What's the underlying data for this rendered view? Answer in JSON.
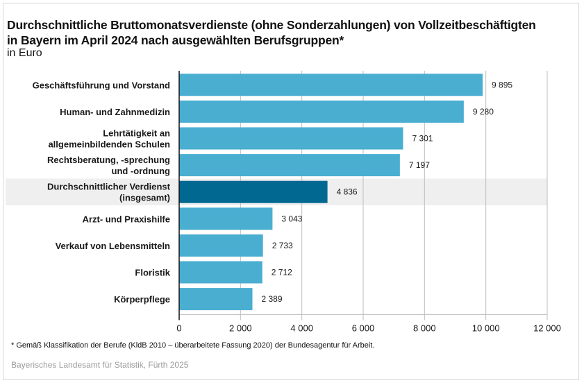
{
  "chart_data": {
    "type": "bar",
    "orientation": "horizontal",
    "title": "Durchschnittliche Bruttomonatsverdienste (ohne Sonderzahlungen) von Vollzeitbeschäftigten in Bayern im April 2024 nach ausgewählten Berufsgruppen*",
    "title_lines": [
      "Durchschnittliche Bruttomonatsverdienste (ohne Sonderzahlungen) von Vollzeitbeschäftigten",
      "in Bayern im April 2024 nach ausgewählten Berufsgruppen*"
    ],
    "subtitle": "in Euro",
    "categories": [
      [
        "Geschäftsführung und Vorstand"
      ],
      [
        "Human- und Zahnmedizin"
      ],
      [
        "Lehrtätigkeit an",
        "allgemeinbildenden Schulen"
      ],
      [
        "Rechtsberatung, -sprechung",
        "und -ordnung"
      ],
      [
        "Durchschnittlicher Verdienst",
        "(insgesamt)"
      ],
      [
        "Arzt- und Praxishilfe"
      ],
      [
        "Verkauf von Lebensmitteln"
      ],
      [
        "Floristik"
      ],
      [
        "Körperpflege"
      ]
    ],
    "values": [
      9895,
      9280,
      7301,
      7197,
      4836,
      3043,
      2733,
      2712,
      2389
    ],
    "value_labels": [
      "9 895",
      "9 280",
      "7 301",
      "7 197",
      "4 836",
      "3 043",
      "2 733",
      "2 712",
      "2 389"
    ],
    "highlight_index": 4,
    "xlim": [
      0,
      12000
    ],
    "xticks": [
      0,
      2000,
      4000,
      6000,
      8000,
      10000,
      12000
    ],
    "xtick_labels": [
      "0",
      "2 000",
      "4 000",
      "6 000",
      "8 000",
      "10 000",
      "12 000"
    ],
    "xlabel": "",
    "ylabel": "",
    "grid": true,
    "colors": {
      "bar": "#4aaed1",
      "highlight_bar": "#006891",
      "highlight_band": "#efefef",
      "grid": "#bdbdbd"
    }
  },
  "footnote": "* Gemäß Klassifikation der Berufe (KldB 2010 – überarbeitete Fassung 2020) der Bundesagentur für Arbeit.",
  "source": "Bayerisches Landesamt für Statistik, Fürth 2025"
}
